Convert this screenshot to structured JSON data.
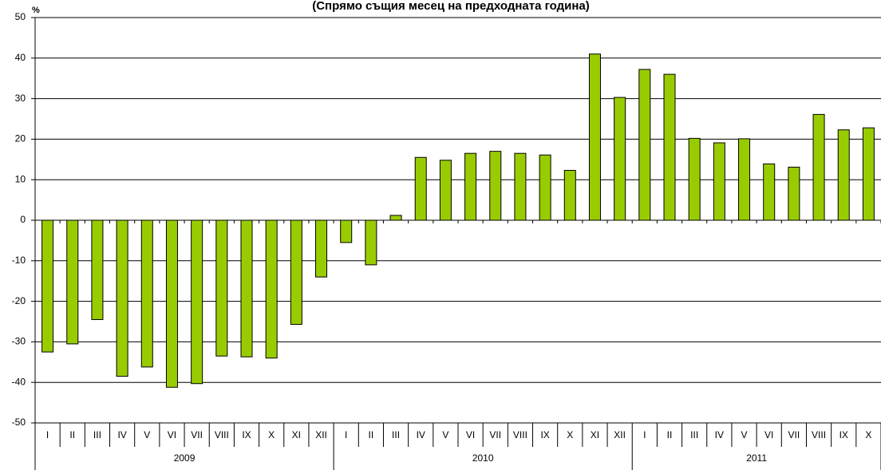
{
  "chart_data": {
    "type": "bar",
    "title": "(Спрямо същия месец на предходната година)",
    "y_label": "%",
    "category_groups": [
      {
        "name": "2009",
        "categories": [
          "I",
          "II",
          "III",
          "IV",
          "V",
          "VI",
          "VII",
          "VIII",
          "IX",
          "X",
          "XI",
          "XII"
        ]
      },
      {
        "name": "2010",
        "categories": [
          "I",
          "II",
          "III",
          "IV",
          "V",
          "VI",
          "VII",
          "VIII",
          "IX",
          "X",
          "XI",
          "XII"
        ]
      },
      {
        "name": "2011",
        "categories": [
          "I",
          "II",
          "III",
          "IV",
          "V",
          "VI",
          "VII",
          "VIII",
          "IX",
          "X"
        ]
      }
    ],
    "values": [
      -32.5,
      -30.5,
      -24.5,
      -38.5,
      -36.2,
      -41.2,
      -40.3,
      -33.5,
      -33.7,
      -34,
      -25.7,
      -14,
      -5.5,
      -11,
      1.2,
      15.5,
      14.8,
      16.5,
      17,
      16.5,
      16.1,
      12.3,
      41,
      30.3,
      37.2,
      36,
      20.2,
      19.1,
      20.1,
      13.9,
      13.1,
      26.1,
      22.3,
      22.8
    ],
    "color": "#99cc00",
    "ylim": [
      -50,
      50
    ],
    "yticks": [
      -50,
      -40,
      -30,
      -20,
      -10,
      0,
      10,
      20,
      30,
      40,
      50
    ],
    "grid": true
  }
}
